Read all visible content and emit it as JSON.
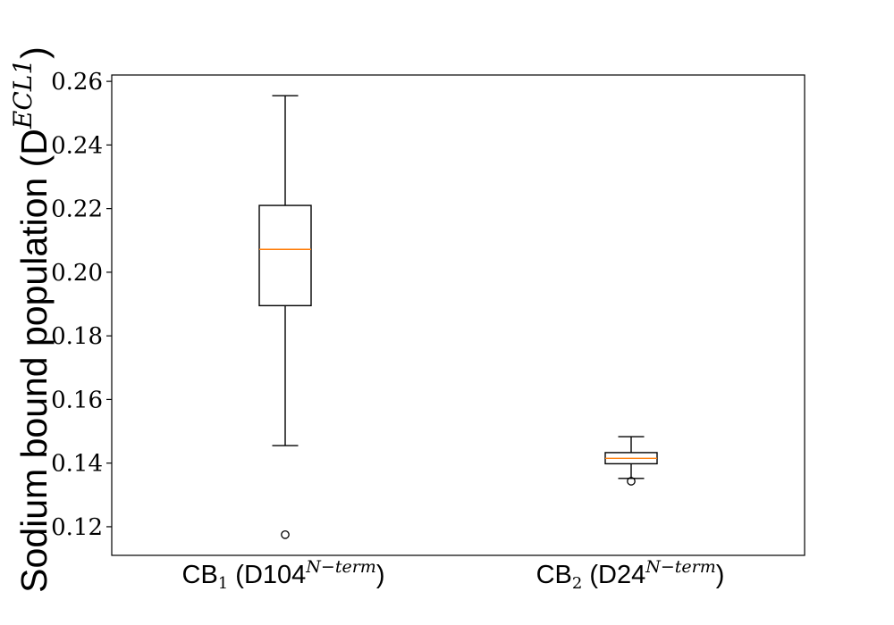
{
  "chart_data": {
    "type": "box",
    "title": "",
    "ylabel": {
      "text": "Sodium bound population (D",
      "superscript": "ECL1",
      "suffix": ")"
    },
    "ylim": [
      0.111,
      0.262
    ],
    "yticks": [
      0.12,
      0.14,
      0.16,
      0.18,
      0.2,
      0.22,
      0.24,
      0.26
    ],
    "ytick_labels": [
      "0.12",
      "0.14",
      "0.16",
      "0.18",
      "0.20",
      "0.22",
      "0.24",
      "0.26"
    ],
    "grid": false,
    "categories": [
      {
        "base": "CB",
        "subscript": "1",
        "mid": " (D104",
        "superscript": "N−term",
        "suffix": ")"
      },
      {
        "base": "CB",
        "subscript": "2",
        "mid": " (D24",
        "superscript": "N−term",
        "suffix": ")"
      }
    ],
    "boxes": [
      {
        "whisker_low": 0.1455,
        "q1": 0.1895,
        "median": 0.2072,
        "q3": 0.221,
        "whisker_high": 0.2555,
        "outliers": [
          0.1175
        ]
      },
      {
        "whisker_low": 0.1352,
        "q1": 0.1398,
        "median": 0.1415,
        "q3": 0.1433,
        "whisker_high": 0.1483,
        "outliers": [
          0.1343
        ]
      }
    ],
    "colors": {
      "box": "#000000",
      "median": "#ff7f0e"
    }
  }
}
